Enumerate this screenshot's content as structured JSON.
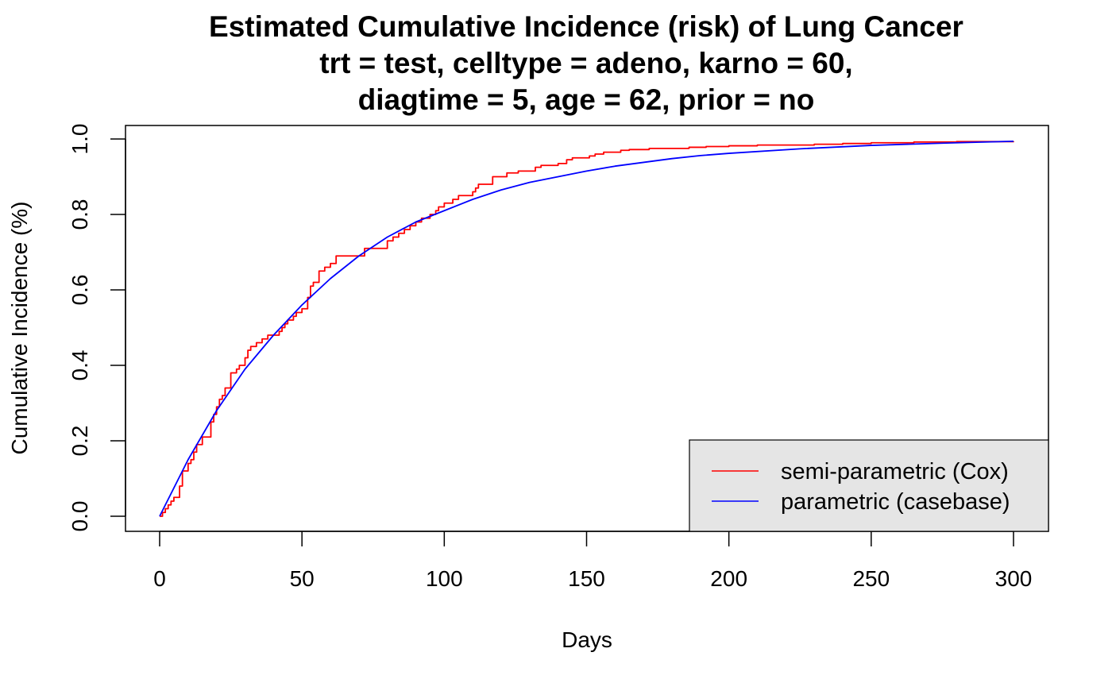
{
  "chart_data": {
    "type": "line",
    "title_lines": [
      "Estimated Cumulative Incidence (risk) of Lung Cancer",
      "trt = test, celltype = adeno, karno = 60,",
      "diagtime = 5, age = 62, prior = no"
    ],
    "xlabel": "Days",
    "ylabel": "Cumulative Incidence (%)",
    "xlim": [
      0,
      300
    ],
    "ylim": [
      0,
      1
    ],
    "x_ticks": [
      "0",
      "50",
      "100",
      "150",
      "200",
      "250",
      "300"
    ],
    "y_ticks": [
      "0.0",
      "0.2",
      "0.4",
      "0.6",
      "0.8",
      "1.0"
    ],
    "grid": false,
    "legend_position": "bottom-right",
    "series": [
      {
        "name": "semi-parametric (Cox)",
        "color": "#ff0000",
        "style": "step",
        "x": [
          0,
          1,
          2,
          3,
          4,
          5,
          7,
          8,
          10,
          11,
          12,
          13,
          15,
          18,
          19,
          20,
          21,
          22,
          23,
          25,
          27,
          28,
          30,
          31,
          32,
          34,
          36,
          38,
          42,
          43,
          44,
          45,
          46,
          47,
          48,
          50,
          52,
          53,
          54,
          56,
          58,
          60,
          62,
          72,
          80,
          82,
          84,
          86,
          88,
          90,
          92,
          95,
          97,
          98,
          100,
          103,
          105,
          110,
          111,
          112,
          117,
          118,
          122,
          126,
          132,
          134,
          140,
          143,
          145,
          151,
          153,
          156,
          162,
          165,
          172,
          186,
          192,
          200,
          210,
          230,
          240,
          250,
          265,
          280,
          300
        ],
        "y": [
          0.0,
          0.01,
          0.02,
          0.03,
          0.04,
          0.05,
          0.08,
          0.12,
          0.14,
          0.15,
          0.17,
          0.19,
          0.21,
          0.25,
          0.27,
          0.29,
          0.31,
          0.32,
          0.34,
          0.38,
          0.39,
          0.4,
          0.42,
          0.44,
          0.45,
          0.46,
          0.47,
          0.48,
          0.49,
          0.5,
          0.51,
          0.52,
          0.52,
          0.53,
          0.54,
          0.55,
          0.58,
          0.61,
          0.62,
          0.65,
          0.66,
          0.67,
          0.69,
          0.71,
          0.73,
          0.74,
          0.75,
          0.76,
          0.77,
          0.78,
          0.79,
          0.8,
          0.81,
          0.82,
          0.83,
          0.84,
          0.85,
          0.86,
          0.87,
          0.88,
          0.9,
          0.9,
          0.91,
          0.915,
          0.925,
          0.93,
          0.935,
          0.945,
          0.95,
          0.955,
          0.96,
          0.965,
          0.97,
          0.972,
          0.975,
          0.978,
          0.98,
          0.982,
          0.984,
          0.986,
          0.988,
          0.99,
          0.992,
          0.993,
          0.994
        ]
      },
      {
        "name": "parametric (casebase)",
        "color": "#0000ff",
        "style": "smooth",
        "x": [
          0,
          10,
          20,
          30,
          40,
          50,
          60,
          70,
          80,
          90,
          100,
          110,
          120,
          130,
          140,
          150,
          160,
          170,
          180,
          190,
          200,
          225,
          250,
          275,
          300
        ],
        "y": [
          0.0,
          0.15,
          0.28,
          0.39,
          0.48,
          0.56,
          0.63,
          0.69,
          0.74,
          0.78,
          0.81,
          0.84,
          0.865,
          0.885,
          0.9,
          0.915,
          0.928,
          0.938,
          0.948,
          0.956,
          0.962,
          0.974,
          0.983,
          0.989,
          0.994
        ]
      }
    ]
  }
}
